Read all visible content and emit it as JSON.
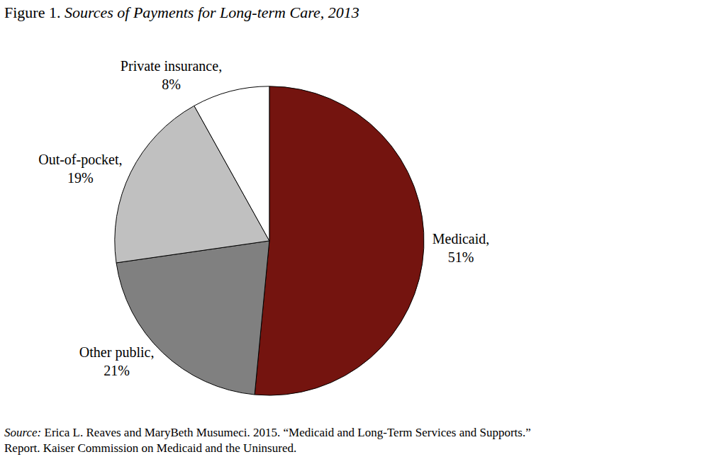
{
  "chart_data": {
    "type": "pie",
    "title": "Figure 1. Sources of Payments for Long-term Care, 2013",
    "categories": [
      "Medicaid,",
      "Other public,",
      "Out-of-pocket,",
      "Private insurance,"
    ],
    "values": [
      51,
      21,
      19,
      8
    ],
    "value_labels": [
      "51%",
      "21%",
      "19%",
      "8%"
    ],
    "data_labels": true,
    "colors": [
      "#74140f",
      "#808080",
      "#c0c0c0",
      "#ffffff"
    ],
    "note": [
      "Source: Erica L. Reaves and MaryBeth Musumeci. 2015. “Medicaid and Long-Term Services and Supports.”",
      "Report. Kaiser Commission on Medicaid and the Uninsured."
    ]
  }
}
